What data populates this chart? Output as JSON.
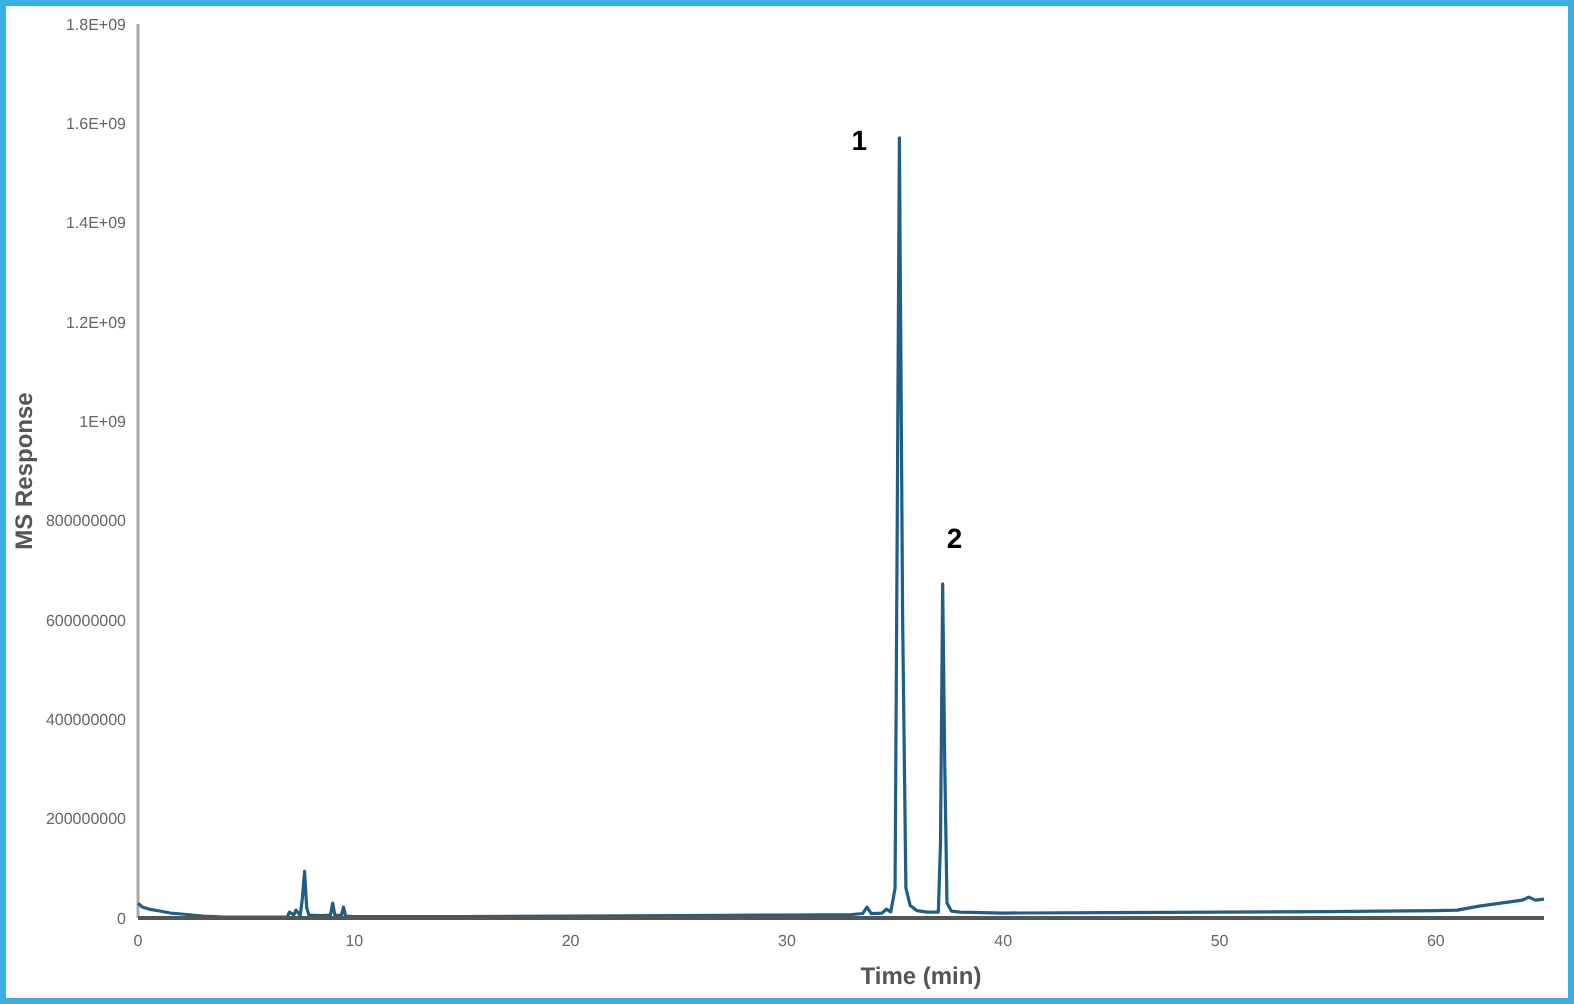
{
  "chart_data": {
    "type": "line",
    "xlabel": "Time (min)",
    "ylabel": "MS Response",
    "x": [
      0,
      0.2,
      0.5,
      1,
      1.5,
      2,
      2.5,
      3,
      4,
      5,
      6,
      6.9,
      7.0,
      7.2,
      7.3,
      7.5,
      7.6,
      7.7,
      7.8,
      7.9,
      8.5,
      8.9,
      9.0,
      9.1,
      9.4,
      9.5,
      9.6,
      10,
      15,
      20,
      25,
      30,
      33,
      33.5,
      33.7,
      33.9,
      34.4,
      34.6,
      34.8,
      35.0,
      35.1,
      35.2,
      35.35,
      35.5,
      35.7,
      36,
      36.5,
      37.0,
      37.1,
      37.2,
      37.3,
      37.4,
      37.6,
      38,
      40,
      45,
      50,
      55,
      60,
      61,
      62,
      63,
      64,
      64.3,
      64.6,
      65
    ],
    "series": [
      {
        "color": "#1f5f86",
        "values": [
          30000000,
          22000000,
          18000000,
          14000000,
          10000000,
          8000000,
          6000000,
          4000000,
          2000000,
          2000000,
          2000000,
          2000000,
          12000000,
          6000000,
          16000000,
          5000000,
          40000000,
          94000000,
          20000000,
          6000000,
          5000000,
          6000000,
          30000000,
          6000000,
          5000000,
          22000000,
          4000000,
          3000000,
          3000000,
          4000000,
          5000000,
          6000000,
          7000000,
          9000000,
          22000000,
          9000000,
          10000000,
          18000000,
          12000000,
          60000000,
          800000000,
          1571000000,
          600000000,
          60000000,
          25000000,
          15000000,
          12000000,
          12000000,
          150000000,
          673000000,
          300000000,
          30000000,
          14000000,
          12000000,
          10000000,
          11000000,
          12000000,
          13000000,
          15000000,
          16000000,
          24000000,
          30000000,
          36000000,
          42000000,
          36000000,
          38000000
        ]
      }
    ],
    "xlim": [
      0,
      65
    ],
    "xticks": [
      0,
      10,
      20,
      30,
      40,
      50,
      60
    ],
    "ylim": [
      0,
      1800000000
    ],
    "yticks": [
      0,
      200000000,
      400000000,
      600000000,
      800000000,
      {
        "value": 1000000000,
        "label": "1E+09"
      },
      {
        "value": 1200000000,
        "label": "1.2E+09"
      },
      {
        "value": 1400000000,
        "label": "1.4E+09"
      },
      {
        "value": 1600000000,
        "label": "1.6E+09"
      },
      {
        "value": 1800000000,
        "label": "1.8E+09"
      }
    ],
    "grid": false,
    "marker": "none",
    "line_style": "solid",
    "annotations": [
      {
        "text": "1",
        "x": 35.2,
        "y": 1571000000
      },
      {
        "text": "2",
        "x": 37.2,
        "y": 673000000
      }
    ]
  }
}
